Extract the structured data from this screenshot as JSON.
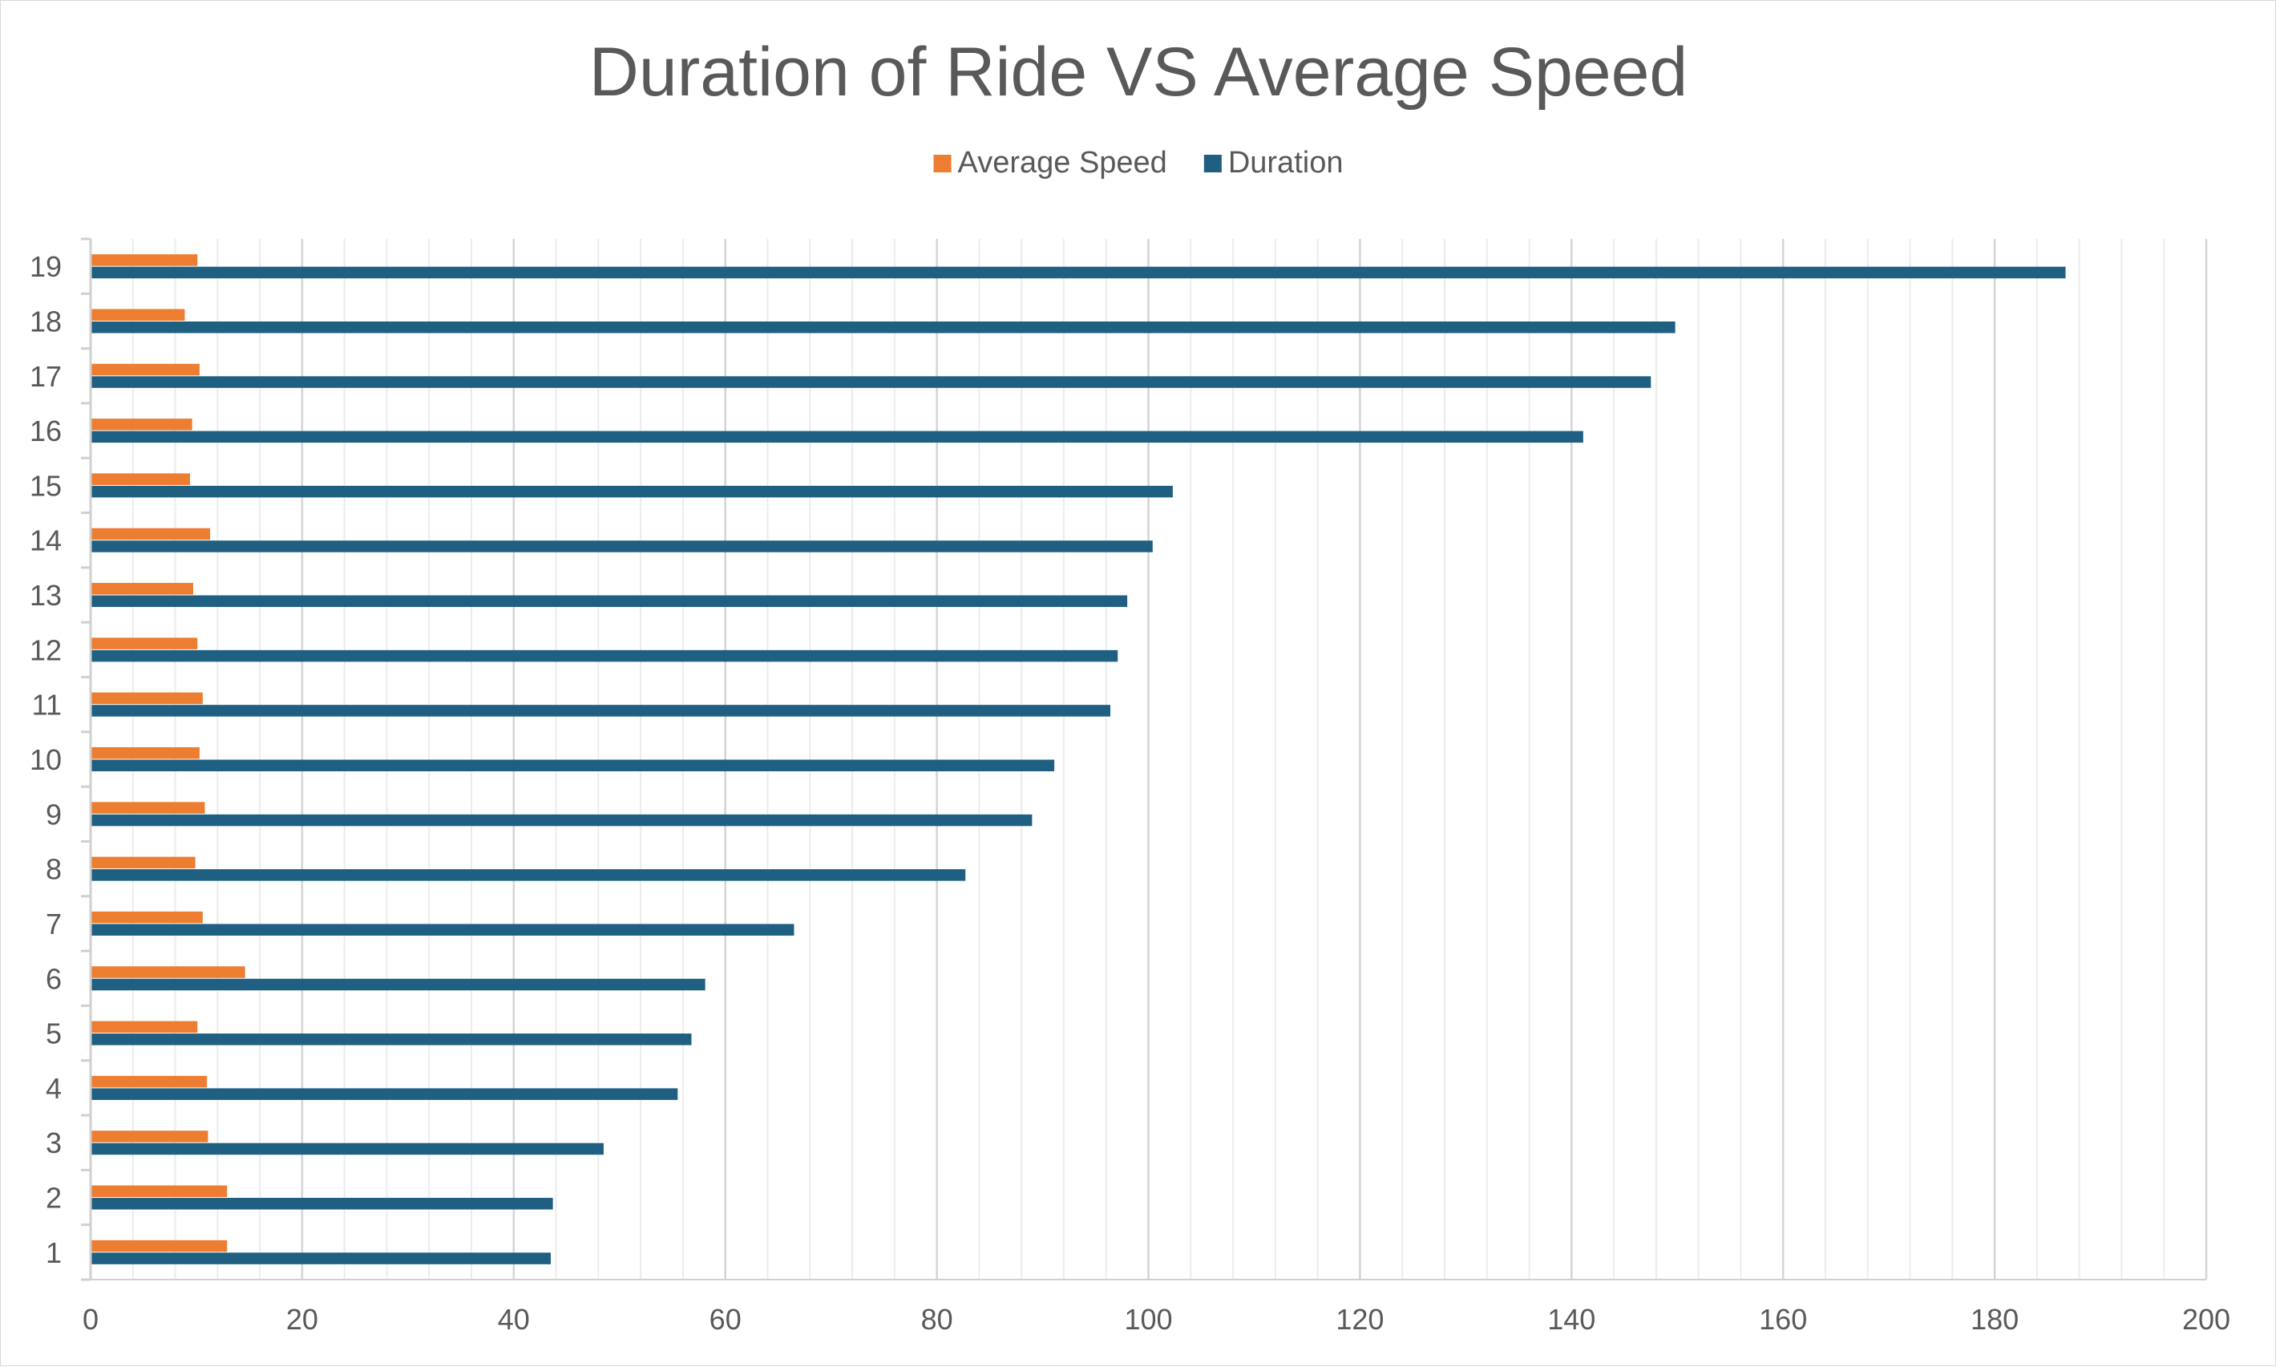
{
  "chart_data": {
    "type": "bar",
    "orientation": "horizontal",
    "title": "Duration of Ride VS Average Speed",
    "xlabel": "",
    "ylabel": "",
    "categories": [
      "1",
      "2",
      "3",
      "4",
      "5",
      "6",
      "7",
      "8",
      "9",
      "10",
      "11",
      "12",
      "13",
      "14",
      "15",
      "16",
      "17",
      "18",
      "19"
    ],
    "series": [
      {
        "name": "Average Speed",
        "color": "#ED7D31",
        "values": [
          12.9,
          12.9,
          11.1,
          11.0,
          10.1,
          14.6,
          10.6,
          9.9,
          10.8,
          10.3,
          10.6,
          10.1,
          9.7,
          11.3,
          9.4,
          9.6,
          10.3,
          8.9,
          10.1
        ]
      },
      {
        "name": "Duration",
        "color": "#1F5F82",
        "values": [
          43.5,
          43.7,
          48.5,
          55.5,
          56.8,
          58.1,
          66.5,
          82.7,
          89.0,
          91.1,
          96.4,
          97.1,
          98.0,
          100.4,
          102.3,
          141.1,
          147.5,
          149.8,
          186.7
        ]
      }
    ],
    "xlim": [
      0,
      200
    ],
    "x_ticks": [
      "0",
      "20",
      "40",
      "60",
      "80",
      "100",
      "120",
      "140",
      "160",
      "180",
      "200"
    ],
    "major_tick_step": 20,
    "minor_tick_step": 4,
    "grid": true,
    "legend_position": "top"
  }
}
